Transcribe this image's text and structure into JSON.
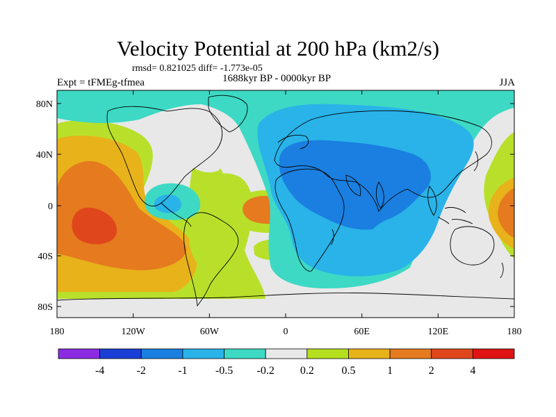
{
  "title": "Velocity Potential at 200 hPa (km2/s)",
  "stats": "rmsd= 0.821025 diff= -1.773e-05",
  "period": "1688kyr BP - 0000kyr BP",
  "experiment": "Expt = tFMEg-tfmea",
  "season": "JJA",
  "lat_ticks": [
    "80N",
    "40N",
    "0",
    "40S",
    "80S"
  ],
  "lon_ticks": [
    "180",
    "120W",
    "60W",
    "0",
    "60E",
    "120E",
    "180"
  ],
  "colorbar": {
    "labels": [
      "-4",
      "-2",
      "-1",
      "-0.5",
      "-0.2",
      "0.2",
      "0.5",
      "1",
      "2",
      "4"
    ],
    "colors": [
      "#8a2be2",
      "#1a3fd6",
      "#1a7fe0",
      "#29b3e8",
      "#3dd9c4",
      "#e8e8e8",
      "#b5df1f",
      "#e8b21a",
      "#e57a1f",
      "#e0461c",
      "#e01414"
    ]
  },
  "field_colors": {
    "bg": "#e8e8e8",
    "lt_green": "#b8e02a",
    "orange_lt": "#e8b21a",
    "orange": "#e57a1f",
    "red_orange": "#e0461c",
    "teal": "#3dd9c4",
    "cyan": "#29b3e8",
    "blue": "#1a7fe0"
  }
}
